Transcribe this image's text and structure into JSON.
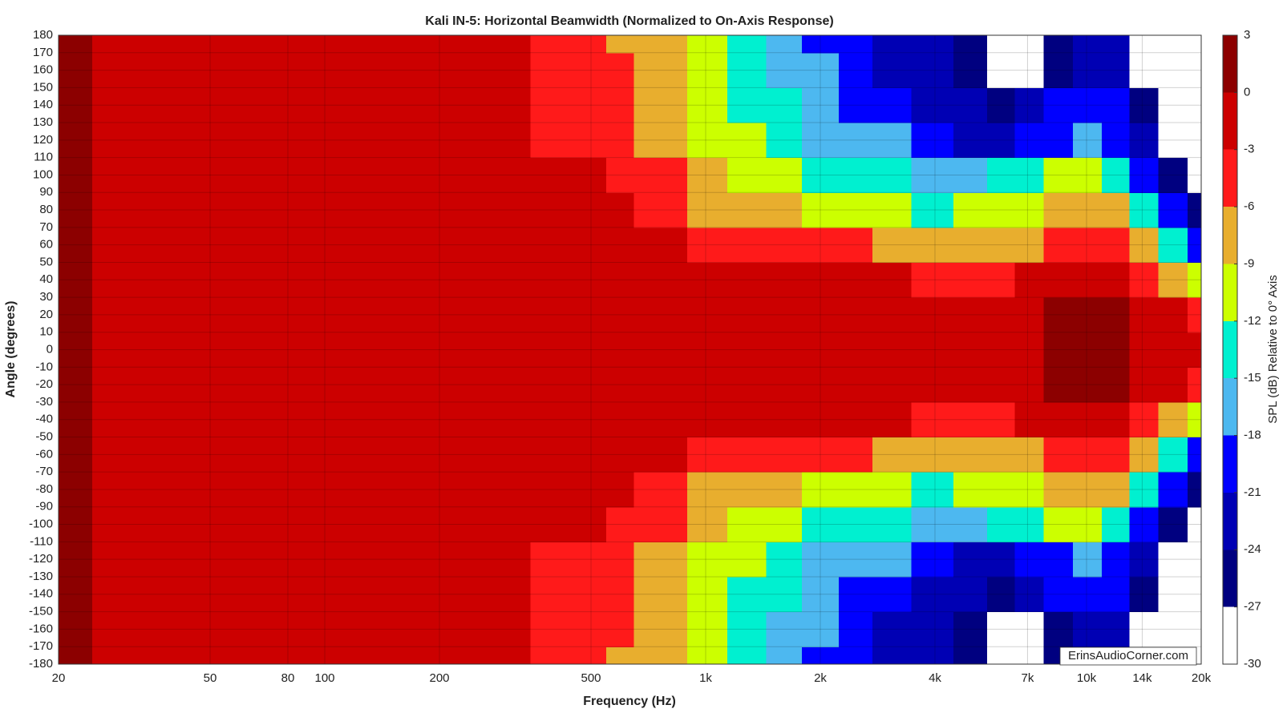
{
  "chart_data": {
    "type": "contour",
    "title": "Kali IN-5: Horizontal Beamwidth (Normalized to On-Axis Response)",
    "xlabel": "Frequency (Hz)",
    "ylabel": "Angle (degrees)",
    "colorbar_label": "SPL (dB) Relative to 0° Axis",
    "watermark": "ErinsAudioCorner.com",
    "xscale": "log",
    "grid": true,
    "xlim": [
      20,
      20000
    ],
    "ylim": [
      -180,
      180
    ],
    "xticks": [
      20,
      50,
      80,
      100,
      200,
      500,
      {
        "value": 1000,
        "label": "1k"
      },
      {
        "value": 2000,
        "label": "2k"
      },
      {
        "value": 4000,
        "label": "4k"
      },
      {
        "value": 7000,
        "label": "7k"
      },
      {
        "value": 10000,
        "label": "10k"
      },
      {
        "value": 14000,
        "label": "14k"
      },
      {
        "value": 20000,
        "label": "20k"
      }
    ],
    "yticks": [
      -180,
      -170,
      -160,
      -150,
      -140,
      -130,
      -120,
      -110,
      -100,
      -90,
      -80,
      -70,
      -60,
      -50,
      -40,
      -30,
      -20,
      -10,
      0,
      10,
      20,
      30,
      40,
      50,
      60,
      70,
      80,
      90,
      100,
      110,
      120,
      130,
      140,
      150,
      160,
      170,
      180
    ],
    "clim": [
      -30,
      3
    ],
    "cticks": [
      -30,
      -27,
      -24,
      -21,
      -18,
      -15,
      -12,
      -9,
      -6,
      -3,
      0,
      3
    ],
    "colors": [
      "#ffffff",
      "#000080",
      "#0000b4",
      "#0000ff",
      "#4db8f0",
      "#00f0d0",
      "#ccff00",
      "#e8ae2e",
      "#ff1a1a",
      "#cc0000",
      "#8c0000"
    ],
    "x": [
      20,
      30,
      50,
      80,
      120,
      200,
      300,
      400,
      500,
      600,
      700,
      800,
      1000,
      1300,
      1600,
      2000,
      2500,
      3000,
      4000,
      5000,
      6000,
      7000,
      8500,
      10000,
      12000,
      14000,
      17000,
      20000
    ],
    "y": [
      -180,
      -160,
      -140,
      -120,
      -100,
      -80,
      -60,
      -40,
      -20,
      0,
      20,
      40,
      60,
      80,
      100,
      120,
      140,
      160,
      180
    ],
    "z": [
      [
        1,
        -1,
        -1,
        -1,
        -1,
        -2,
        -3,
        -4,
        -5,
        -7,
        -8,
        -9,
        -11,
        -13,
        -16,
        -19,
        -21,
        -23,
        -24,
        -25,
        -28,
        -28,
        -26,
        -22,
        -24,
        -28,
        -29,
        -29
      ],
      [
        1,
        -1,
        -1,
        -1,
        -1,
        -2,
        -3,
        -4,
        -5,
        -6,
        -8,
        -9,
        -11,
        -13,
        -16,
        -18,
        -20,
        -22,
        -23,
        -25,
        -28,
        -28,
        -25,
        -22,
        -23,
        -28,
        -29,
        -29
      ],
      [
        1,
        -1,
        -1,
        -1,
        -1,
        -2,
        -3,
        -4,
        -5,
        -6,
        -8,
        -8,
        -10,
        -13,
        -15,
        -17,
        -19,
        -20,
        -22,
        -24,
        -27,
        -22,
        -21,
        -19,
        -21,
        -26,
        -29,
        -29
      ],
      [
        1,
        -1,
        -1,
        -1,
        -1,
        -1,
        -2,
        -4,
        -4,
        -5,
        -7,
        -7,
        -10,
        -12,
        -14,
        -16,
        -17,
        -18,
        -21,
        -22,
        -22,
        -20,
        -19,
        -17,
        -19,
        -23,
        -28,
        -29
      ],
      [
        1,
        -1,
        -1,
        -1,
        -1,
        -1,
        -2,
        -3,
        -3,
        -4,
        -5,
        -6,
        -9,
        -10,
        -11,
        -13,
        -14,
        -15,
        -17,
        -17,
        -15,
        -14,
        -12,
        -11,
        -13,
        -19,
        -25,
        -28
      ],
      [
        1,
        -1,
        -1,
        -1,
        -1,
        -1,
        -1,
        -2,
        -2,
        -2,
        -4,
        -5,
        -7,
        -8,
        -9,
        -10,
        -11,
        -12,
        -13,
        -12,
        -11,
        -10,
        -8,
        -7,
        -9,
        -14,
        -21,
        -25
      ],
      [
        1,
        -1,
        -1,
        -1,
        -1,
        -1,
        -1,
        -1,
        -2,
        -2,
        -2,
        -3,
        -4,
        -4,
        -5,
        -5,
        -6,
        -7,
        -8,
        -8,
        -7,
        -7,
        -5,
        -4,
        -5,
        -8,
        -13,
        -19
      ],
      [
        1,
        -1,
        -1,
        -1,
        -1,
        -1,
        -1,
        -1,
        -1,
        -1,
        -2,
        -2,
        -2,
        -2,
        -2,
        -2,
        -2,
        -3,
        -4,
        -4,
        -4,
        -3,
        -2,
        -2,
        -2,
        -5,
        -7,
        -10
      ],
      [
        1,
        -1,
        -1,
        -1,
        -1,
        -1,
        -1,
        -1,
        -1,
        -1,
        -1,
        -1,
        -1,
        -1,
        -1,
        -1,
        -1,
        -1,
        -1,
        -2,
        -2,
        -2,
        1,
        1,
        0,
        -2,
        -3,
        -4
      ],
      [
        1,
        -1,
        -1,
        -1,
        -1,
        -1,
        -1,
        -1,
        -1,
        -1,
        -1,
        -1,
        -1,
        -1,
        -1,
        -1,
        -1,
        -1,
        -1,
        -1,
        -1,
        -1,
        1,
        1,
        1,
        -1,
        -1,
        -1
      ],
      [
        1,
        -1,
        -1,
        -1,
        -1,
        -1,
        -1,
        -1,
        -1,
        -1,
        -1,
        -1,
        -1,
        -1,
        -1,
        -1,
        -1,
        -1,
        -1,
        -2,
        -2,
        -2,
        1,
        1,
        0,
        -2,
        -3,
        -4
      ],
      [
        1,
        -1,
        -1,
        -1,
        -1,
        -1,
        -1,
        -1,
        -1,
        -1,
        -2,
        -2,
        -2,
        -2,
        -2,
        -2,
        -2,
        -3,
        -4,
        -4,
        -4,
        -3,
        -2,
        -2,
        -2,
        -5,
        -7,
        -10
      ],
      [
        1,
        -1,
        -1,
        -1,
        -1,
        -1,
        -1,
        -1,
        -2,
        -2,
        -2,
        -3,
        -4,
        -4,
        -5,
        -5,
        -6,
        -7,
        -8,
        -8,
        -7,
        -7,
        -5,
        -4,
        -5,
        -8,
        -13,
        -19
      ],
      [
        1,
        -1,
        -1,
        -1,
        -1,
        -1,
        -1,
        -2,
        -2,
        -2,
        -4,
        -5,
        -7,
        -8,
        -9,
        -10,
        -11,
        -12,
        -13,
        -12,
        -11,
        -10,
        -8,
        -7,
        -9,
        -14,
        -21,
        -25
      ],
      [
        1,
        -1,
        -1,
        -1,
        -1,
        -1,
        -2,
        -3,
        -3,
        -4,
        -5,
        -6,
        -9,
        -10,
        -11,
        -13,
        -14,
        -15,
        -17,
        -17,
        -15,
        -14,
        -12,
        -11,
        -13,
        -19,
        -25,
        -28
      ],
      [
        1,
        -1,
        -1,
        -1,
        -1,
        -1,
        -2,
        -4,
        -4,
        -5,
        -7,
        -7,
        -10,
        -12,
        -14,
        -16,
        -17,
        -18,
        -21,
        -22,
        -22,
        -20,
        -19,
        -17,
        -19,
        -23,
        -28,
        -29
      ],
      [
        1,
        -1,
        -1,
        -1,
        -1,
        -2,
        -3,
        -4,
        -5,
        -6,
        -8,
        -8,
        -10,
        -13,
        -15,
        -17,
        -19,
        -20,
        -22,
        -24,
        -27,
        -22,
        -21,
        -19,
        -21,
        -26,
        -29,
        -29
      ],
      [
        1,
        -1,
        -1,
        -1,
        -1,
        -2,
        -3,
        -4,
        -5,
        -6,
        -8,
        -9,
        -11,
        -13,
        -16,
        -18,
        -20,
        -22,
        -23,
        -25,
        -28,
        -28,
        -25,
        -22,
        -23,
        -28,
        -29,
        -29
      ],
      [
        1,
        -1,
        -1,
        -1,
        -1,
        -2,
        -3,
        -4,
        -5,
        -7,
        -8,
        -9,
        -11,
        -13,
        -16,
        -19,
        -21,
        -23,
        -24,
        -25,
        -28,
        -28,
        -26,
        -22,
        -24,
        -28,
        -29,
        -29
      ]
    ]
  }
}
